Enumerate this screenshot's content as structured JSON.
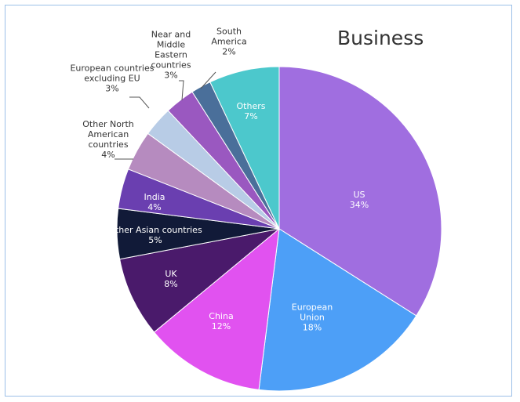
{
  "chart_data": {
    "type": "pie",
    "title": "Business",
    "categories": [
      "US",
      "European Union",
      "China",
      "UK",
      "Other Asian countries",
      "India",
      "Other North American countries",
      "European countries excluding EU",
      "Near and Middle Eastern countries",
      "South America",
      "Others"
    ],
    "values": [
      34,
      18,
      12,
      8,
      5,
      4,
      4,
      3,
      3,
      2,
      7
    ],
    "value_labels": [
      "34%",
      "18%",
      "12%",
      "8%",
      "5%",
      "4%",
      "4%",
      "3%",
      "3%",
      "2%",
      "7%"
    ],
    "colors": [
      "#a06ee0",
      "#4d9ff7",
      "#e152f0",
      "#4a1a6b",
      "#111a38",
      "#6a3fb0",
      "#b68bbf",
      "#b8cce6",
      "#9a58c0",
      "#4a6f9a",
      "#4cc8cc"
    ]
  }
}
